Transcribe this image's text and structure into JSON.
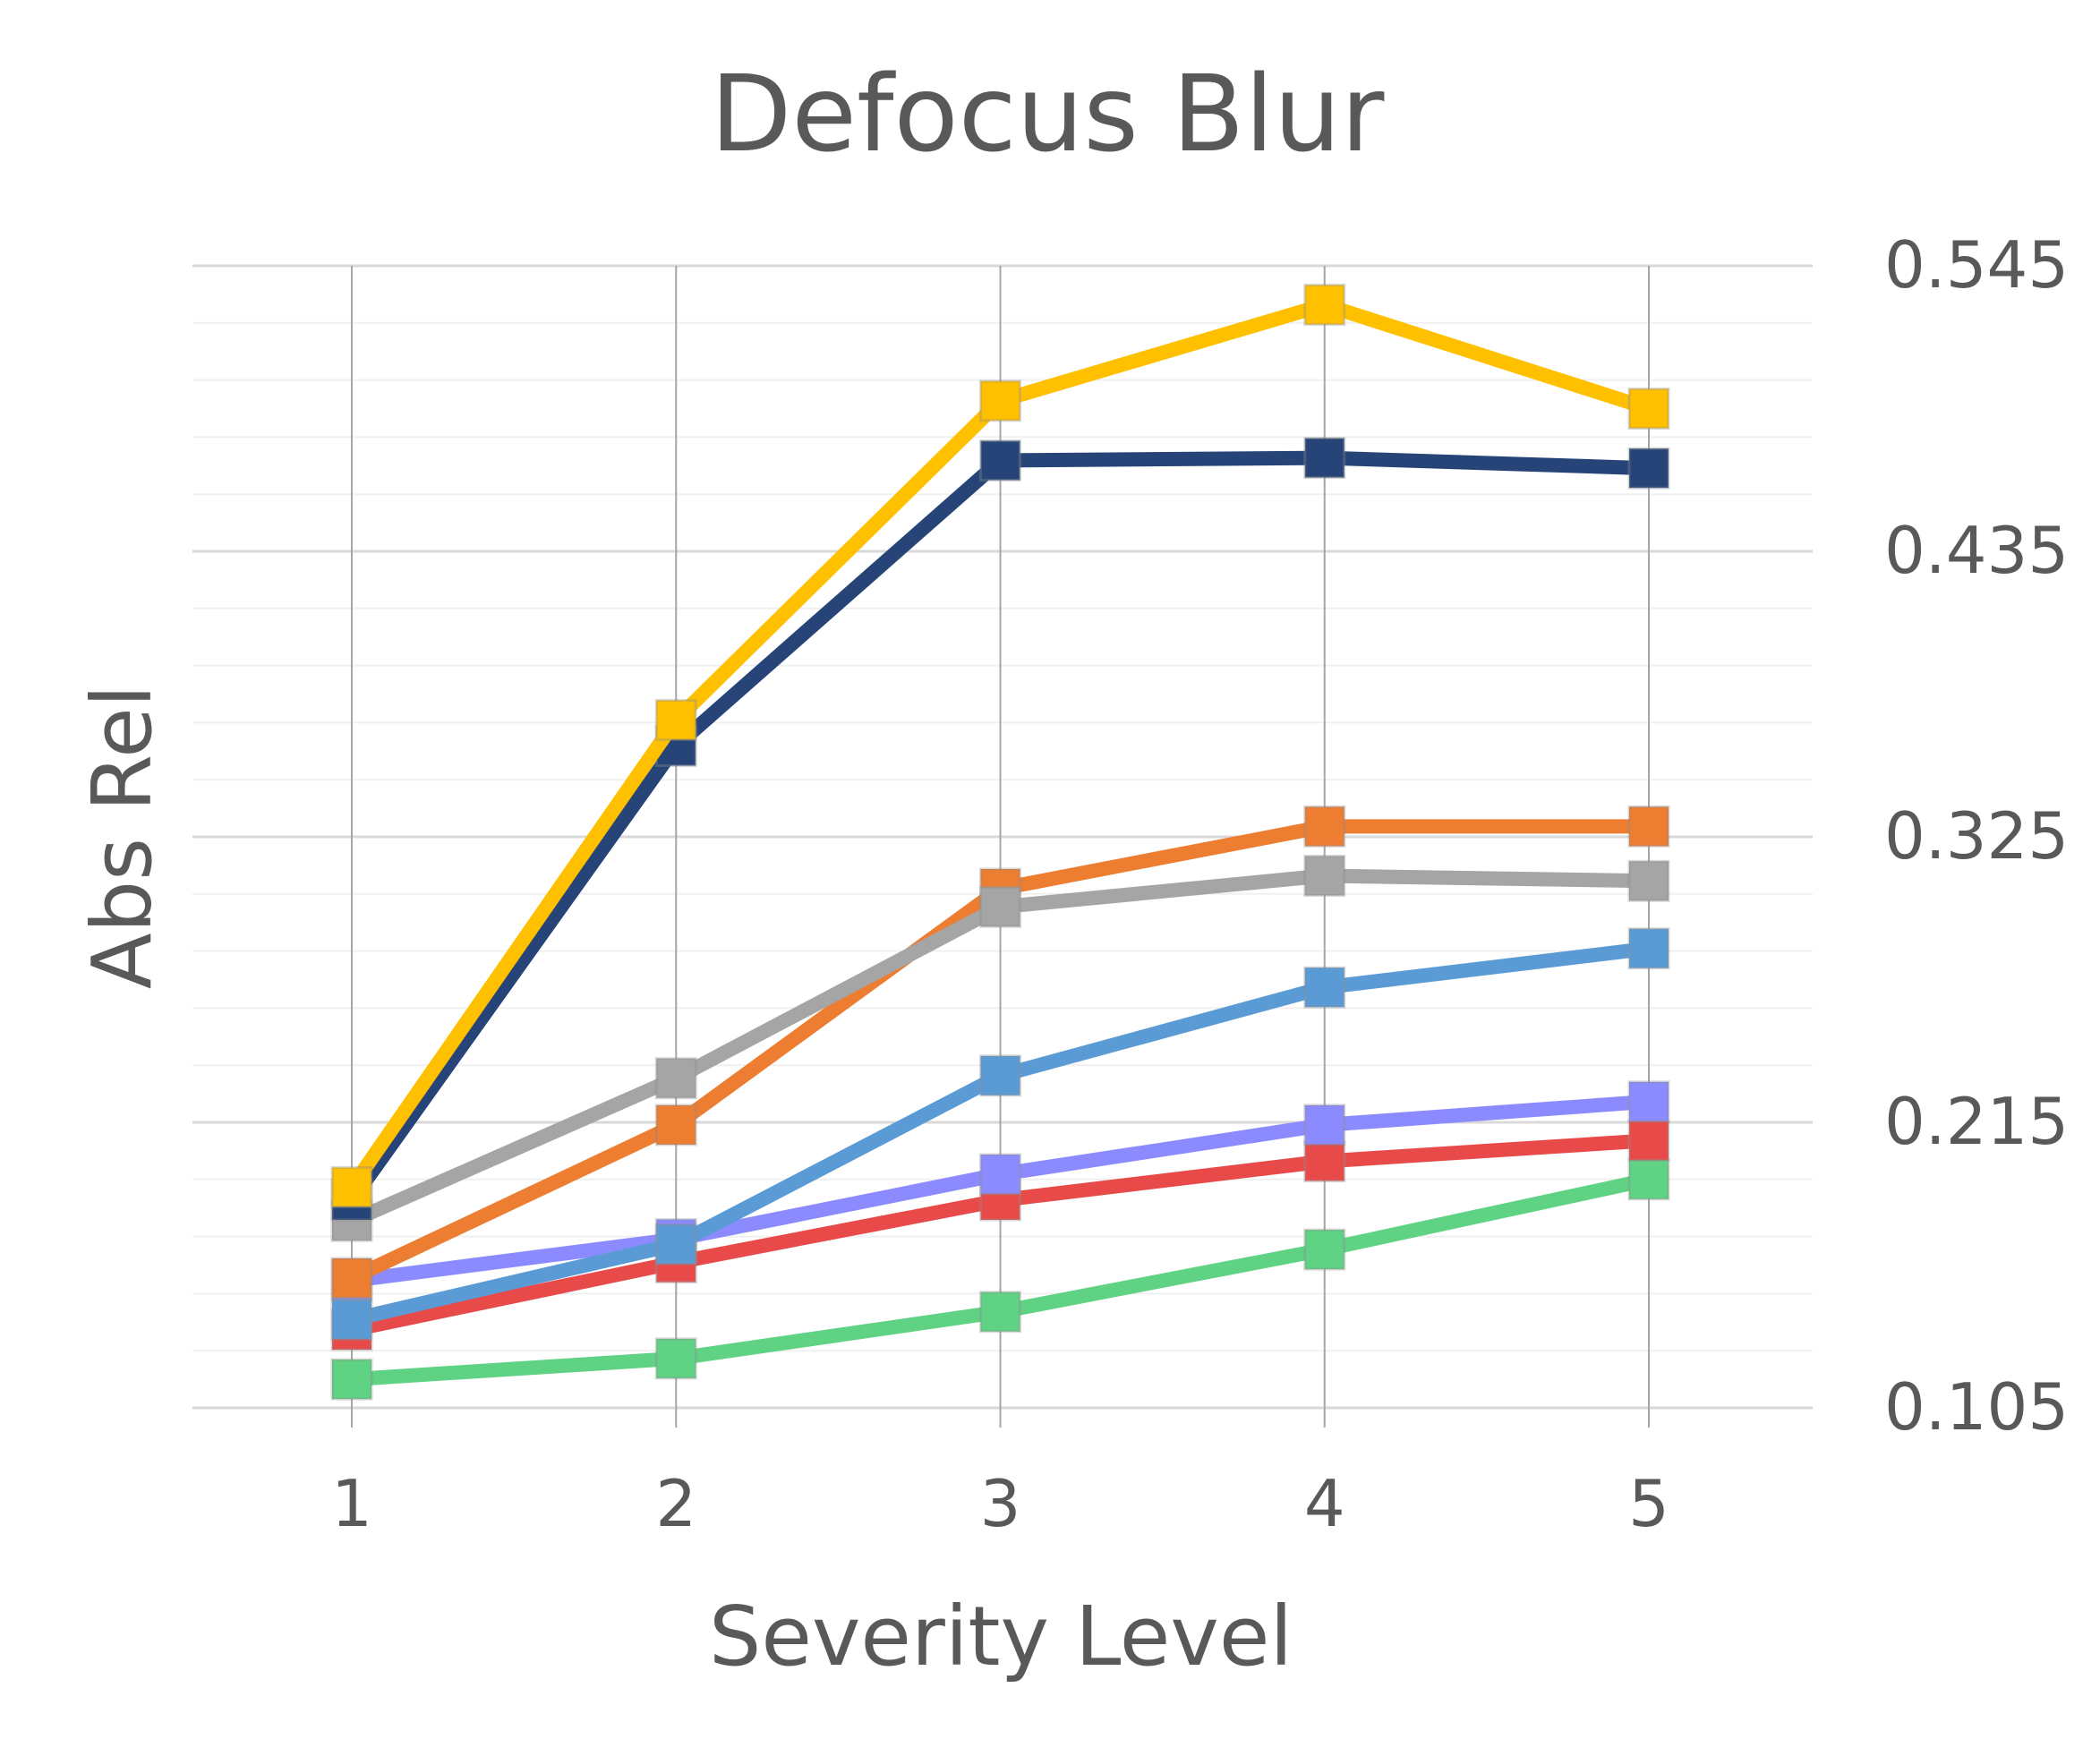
{
  "chart_data": {
    "type": "line",
    "title": "Defocus Blur",
    "xlabel": "Severity Level",
    "ylabel": "Abs Rel",
    "categories": [
      "1",
      "2",
      "3",
      "4",
      "5"
    ],
    "ylim": [
      0.105,
      0.545
    ],
    "yticks": [
      "0.105",
      "0.215",
      "0.325",
      "0.435",
      "0.545"
    ],
    "y_axis_side": "right",
    "grid": true,
    "legend": "none",
    "marker": "square",
    "series": [
      {
        "color": "#5FD383",
        "values": [
          0.116,
          0.124,
          0.142,
          0.166,
          0.193
        ]
      },
      {
        "color": "#E84A4A",
        "values": [
          0.135,
          0.161,
          0.185,
          0.2,
          0.208
        ]
      },
      {
        "color": "#8B8BFF",
        "values": [
          0.154,
          0.17,
          0.195,
          0.214,
          0.223
        ]
      },
      {
        "color": "#5B9BD5",
        "values": [
          0.139,
          0.168,
          0.233,
          0.267,
          0.282
        ]
      },
      {
        "color": "#ED7D31",
        "values": [
          0.155,
          0.214,
          0.305,
          0.329,
          0.329
        ]
      },
      {
        "color": "#A5A5A5",
        "values": [
          0.177,
          0.232,
          0.298,
          0.31,
          0.308
        ]
      },
      {
        "color": "#264478",
        "values": [
          0.185,
          0.36,
          0.47,
          0.471,
          0.467
        ]
      },
      {
        "color": "#FFC000",
        "values": [
          0.19,
          0.37,
          0.493,
          0.53,
          0.49
        ]
      }
    ]
  }
}
